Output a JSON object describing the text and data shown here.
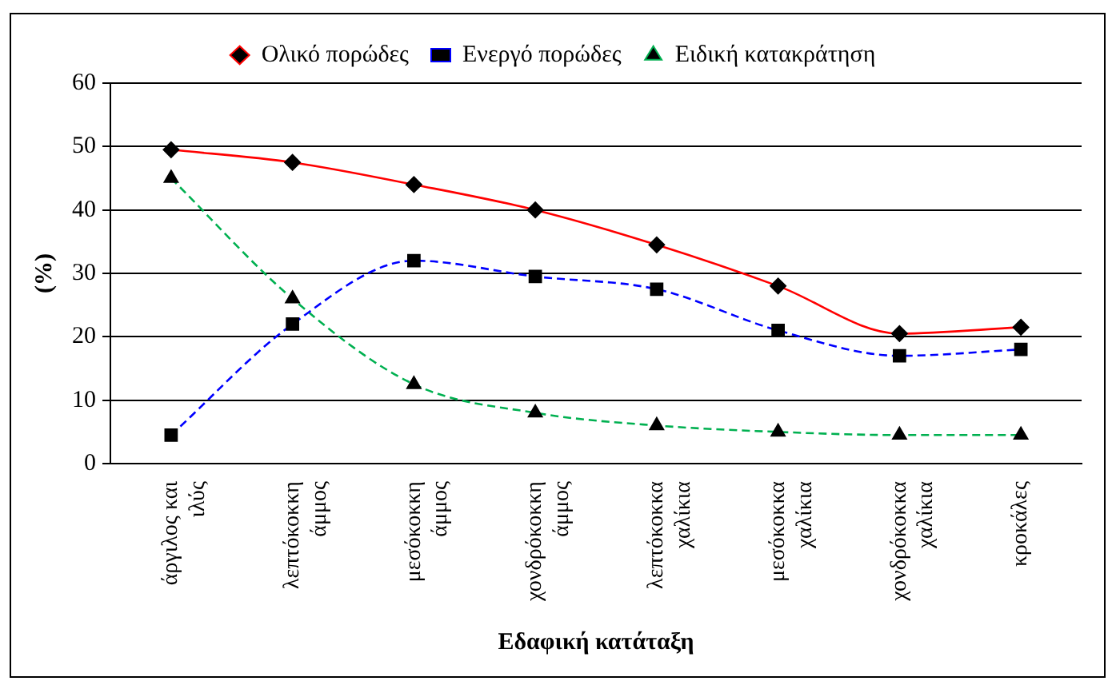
{
  "chart_data": {
    "type": "line",
    "xlabel": "Εδαφική κατάταξη",
    "ylabel": "(%)",
    "categories": [
      "άργιλος και ιλύς",
      "λεπτόκοκκη άμμος",
      "μεσόκοκκη άμμος",
      "χονδρόκοκκη άμμος",
      "λεπτόκοκκα χαλίκια",
      "μεσόκοκκα χαλίκια",
      "χονδρόκοκκα χαλίκια",
      "κροκάλες"
    ],
    "series": [
      {
        "name": "Ολικό πορώδες",
        "color": "#ff0000",
        "marker": "diamond",
        "line_style": "solid",
        "values": [
          49.5,
          47.5,
          44,
          40,
          34.5,
          28,
          20.5,
          21.5
        ]
      },
      {
        "name": "Ενεργό πορώδες",
        "color": "#0000ff",
        "marker": "square",
        "line_style": "dashed",
        "values": [
          4.5,
          22,
          32,
          29.5,
          27.5,
          21,
          17,
          18
        ]
      },
      {
        "name": "Ειδική κατακράτηση",
        "color": "#00b050",
        "marker": "triangle",
        "line_style": "dashed",
        "values": [
          45,
          26,
          12.5,
          8,
          6,
          5,
          4.5,
          4.5
        ]
      }
    ],
    "ylim": [
      0,
      60
    ],
    "yticks": [
      0,
      10,
      20,
      30,
      40,
      50,
      60
    ],
    "grid": "y",
    "legend": "top"
  }
}
